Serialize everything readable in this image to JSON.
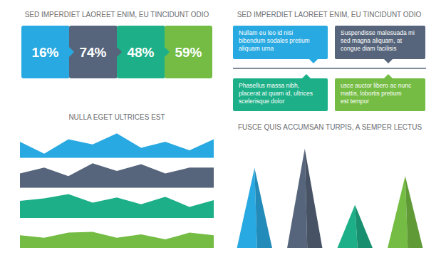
{
  "percent_panel": {
    "title": "SED IMPERDIET LAOREET ENIM, EU TINCIDUNT ODIO",
    "values": [
      16,
      74,
      48,
      59
    ],
    "value_labels": [
      "16%",
      "74%",
      "48%",
      "59%"
    ],
    "colors": [
      "#29a9e1",
      "#56657b",
      "#1db088",
      "#74bc43"
    ]
  },
  "text_panel": {
    "title": "SED IMPERDIET LAOREET ENIM, EU TINCIDUNT ODIO",
    "boxes": [
      {
        "lines": [
          "Nullam eu leo id nisi",
          "bibendum sodales pretium",
          "aliquam urna"
        ],
        "color": "#29a9e1"
      },
      {
        "lines": [
          "Suspendisse malesuada mi",
          "sed magna aliquam, at",
          "congue diam facilisis"
        ],
        "color": "#56657b"
      },
      {
        "lines": [
          "Phasellus massa nibh,",
          "placerat at quam id, ultrices",
          "scelerisque dolor"
        ],
        "color": "#1db088"
      },
      {
        "lines": [
          "usce auctor libero ac nunc",
          "mattis, lobortis pretium",
          "est tempor"
        ],
        "color": "#74bc43"
      }
    ]
  },
  "chart_data": [
    {
      "type": "area",
      "title": "NULLA EGET ULTRICES EST",
      "x": [
        0,
        1,
        2,
        3,
        4,
        5,
        6,
        7,
        8
      ],
      "xlim": [
        0,
        8
      ],
      "ylim": [
        0,
        30
      ],
      "tick_labels": false,
      "series": [
        {
          "color": "#29a9e1",
          "values": [
            19,
            5,
            22,
            16,
            29,
            12,
            19,
            9,
            22
          ]
        },
        {
          "color": "#56657b",
          "values": [
            17,
            24,
            14,
            29,
            20,
            28,
            17,
            24,
            24
          ]
        },
        {
          "color": "#1db088",
          "values": [
            20,
            23,
            28,
            18,
            24,
            16,
            25,
            13,
            21
          ]
        },
        {
          "color": "#74bc43",
          "values": [
            15,
            12,
            18,
            19,
            12,
            16,
            10,
            18,
            15
          ]
        }
      ]
    },
    {
      "type": "bar",
      "marker": "triangle",
      "title": "FUSCE QUIS ACCUMSAN TURPIS, A SEMPER LECTUS",
      "categories": [
        null,
        null,
        null,
        null
      ],
      "values": [
        117,
        145,
        63,
        105
      ],
      "colors": [
        "#29a9e1",
        "#56657b",
        "#1db088",
        "#74bc43"
      ],
      "ylim": [
        0,
        150
      ],
      "tick_labels": false
    }
  ]
}
